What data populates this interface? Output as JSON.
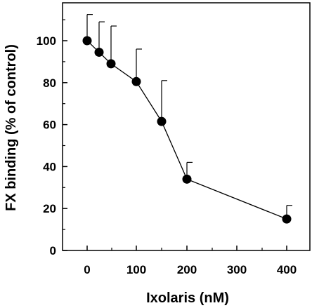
{
  "chart_data": {
    "type": "scatter",
    "title": "",
    "xlabel": "Ixolaris (nM)",
    "ylabel": "FX binding (% of control)",
    "x_tick_labels": [
      "0",
      "100",
      "200",
      "300",
      "400"
    ],
    "y_tick_labels": [
      "0",
      "20",
      "40",
      "60",
      "80",
      "100"
    ],
    "ylim": [
      0,
      115
    ],
    "grid": false,
    "legend": "none",
    "series": [
      {
        "x": [
          0,
          25,
          50,
          100,
          150,
          200,
          400
        ],
        "y": [
          100,
          94.5,
          89,
          80.5,
          61.5,
          34,
          15
        ],
        "error_upper": [
          12.5,
          14.5,
          18,
          15.5,
          19.5,
          8,
          6.5
        ],
        "line": true,
        "marker": "filled-circle",
        "color": "#000000"
      }
    ]
  }
}
